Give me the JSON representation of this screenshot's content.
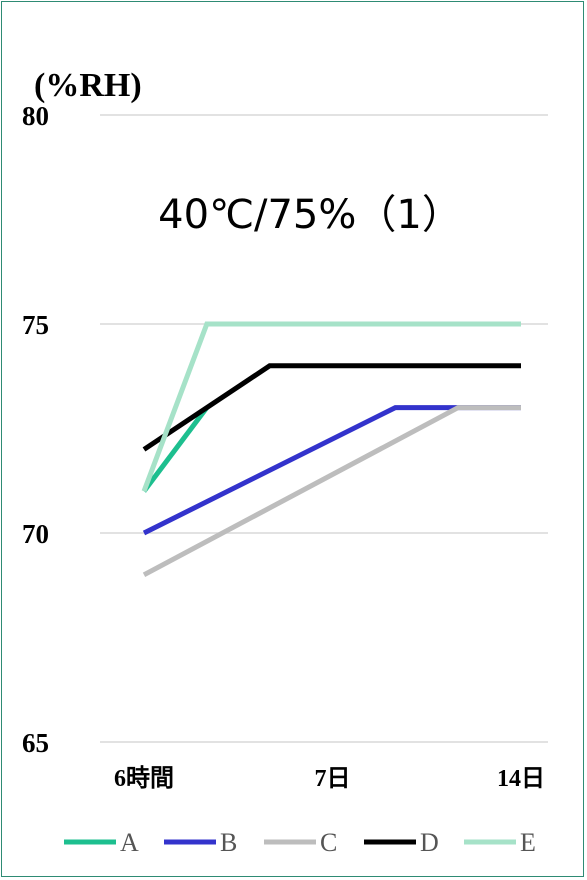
{
  "chart_data": {
    "type": "line",
    "title": "40℃/75%（1）",
    "ylabel": "(%RH)",
    "xlabel": "",
    "ylim": [
      65,
      80
    ],
    "yticks": [
      65,
      70,
      75,
      80
    ],
    "x": [
      0,
      1,
      2,
      3,
      4,
      5,
      6
    ],
    "categories": [
      "6時間",
      "",
      "",
      "7日",
      "",
      "",
      "14日"
    ],
    "legend_position": "bottom",
    "grid": true,
    "series": [
      {
        "name": "A",
        "color": "#1dbf8f",
        "values": [
          71,
          73,
          null,
          null,
          null,
          null,
          null
        ]
      },
      {
        "name": "B",
        "color": "#3333cc",
        "values": [
          70,
          null,
          null,
          null,
          73,
          null,
          73
        ]
      },
      {
        "name": "C",
        "color": "#bdbdbd",
        "values": [
          69,
          null,
          null,
          null,
          null,
          73,
          73
        ]
      },
      {
        "name": "D",
        "color": "#000000",
        "values": [
          72,
          null,
          74,
          null,
          null,
          null,
          74
        ]
      },
      {
        "name": "E",
        "color": "#a6e2c8",
        "values": [
          71,
          75,
          null,
          null,
          null,
          null,
          75
        ]
      }
    ]
  }
}
